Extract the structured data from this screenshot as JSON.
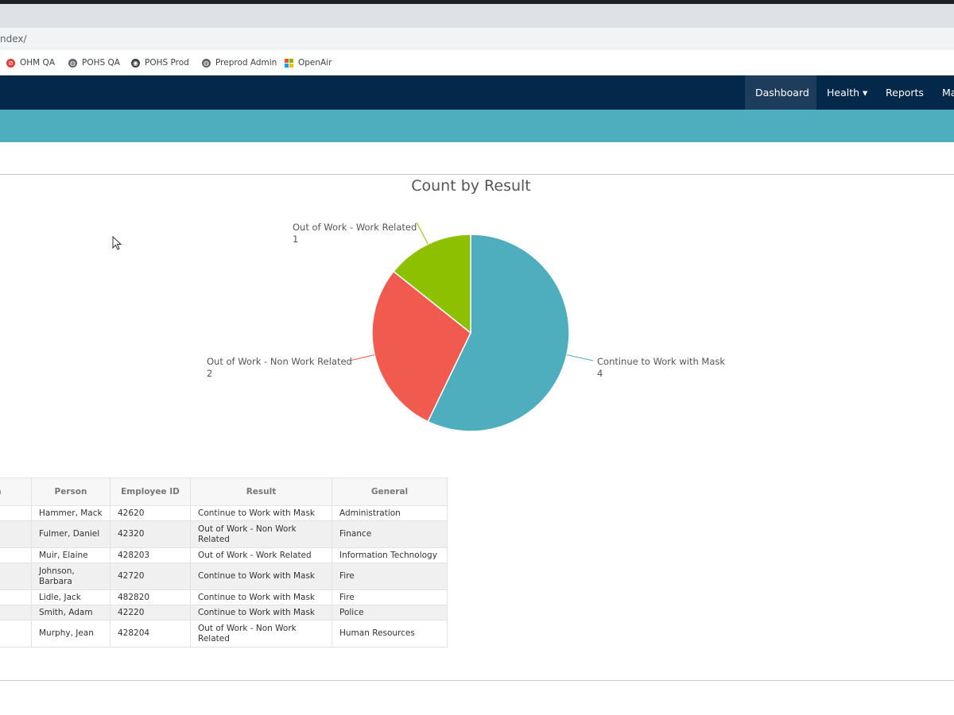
{
  "browser": {
    "url": "ndex/",
    "bookmarks": [
      {
        "label": "OHM QA",
        "icon": "red-circle-icon"
      },
      {
        "label": "POHS QA",
        "icon": "globe-icon"
      },
      {
        "label": "POHS Prod",
        "icon": "circle-logo-icon"
      },
      {
        "label": "Preprod Admin",
        "icon": "globe-icon"
      },
      {
        "label": "OpenAir",
        "icon": "windows-logo-icon"
      }
    ]
  },
  "navbar": {
    "items": [
      {
        "label": "Dashboard",
        "active": true
      },
      {
        "label": "Health ▾",
        "active": false
      },
      {
        "label": "Reports",
        "active": false
      },
      {
        "label": "Ma",
        "active": false
      }
    ]
  },
  "chart_data": {
    "type": "pie",
    "title": "Count by Result",
    "slices": [
      {
        "label": "Continue to Work with Mask",
        "value": 4,
        "color": "#4faebd"
      },
      {
        "label": "Out of Work - Non Work Related",
        "value": 2,
        "color": "#f05a4f"
      },
      {
        "label": "Out of Work - Work Related",
        "value": 1,
        "color": "#8dc000"
      }
    ]
  },
  "table": {
    "columns": [
      "tion",
      "Person",
      "Employee ID",
      "Result",
      "General"
    ],
    "rows": [
      [
        "",
        "Hammer, Mack",
        "42620",
        "Continue to Work with Mask",
        "Administration"
      ],
      [
        "",
        "Fulmer, Daniel",
        "42320",
        "Out of Work - Non Work Related",
        "Finance"
      ],
      [
        "",
        "Muir, Elaine",
        "428203",
        "Out of Work - Work Related",
        "Information Technology"
      ],
      [
        "",
        "Johnson, Barbara",
        "42720",
        "Continue to Work with Mask",
        "Fire"
      ],
      [
        "",
        "Lidle, Jack",
        "482820",
        "Continue to Work with Mask",
        "Fire"
      ],
      [
        "",
        "Smith, Adam",
        "42220",
        "Continue to Work with Mask",
        "Police"
      ],
      [
        "",
        "Murphy, Jean",
        "428204",
        "Out of Work - Non Work Related",
        "Human Resources"
      ]
    ]
  }
}
